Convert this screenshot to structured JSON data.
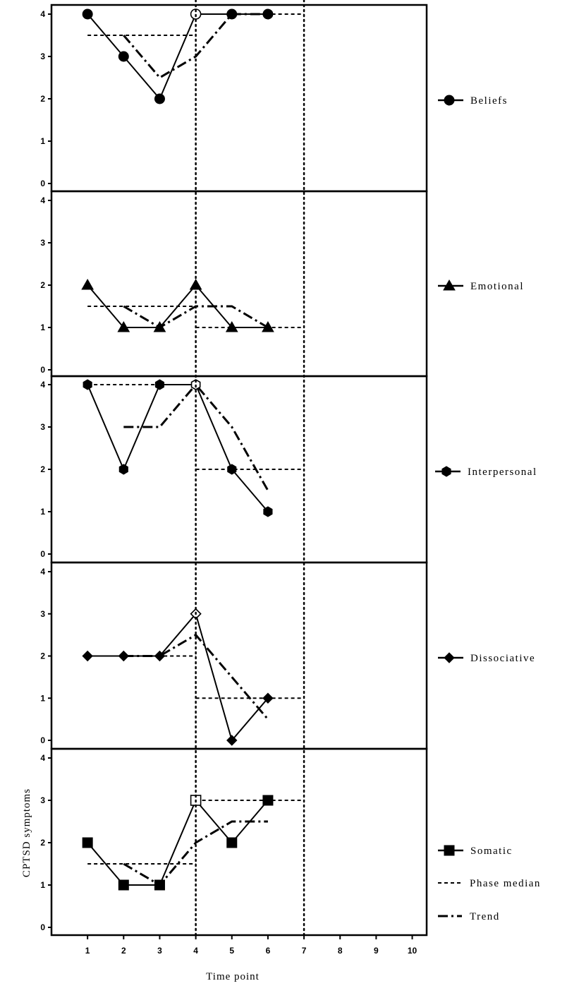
{
  "chart_data": {
    "type": "line",
    "ylabel": "CPTSD symptoms",
    "xlabel": "Time point",
    "x_ticks": [
      1,
      2,
      3,
      4,
      5,
      6,
      7,
      8,
      9,
      10
    ],
    "xlim": [
      0,
      10.4
    ],
    "ylim": [
      0,
      4
    ],
    "y_ticks": [
      0,
      1,
      2,
      3,
      4
    ],
    "phase_change_lines": [
      4,
      7
    ],
    "legend_extra": [
      {
        "name": "Phase median",
        "style": "dashed"
      },
      {
        "name": "Trend",
        "style": "dash-dot"
      }
    ],
    "panels": [
      {
        "name": "Beliefs",
        "marker": "circle",
        "x": [
          1,
          2,
          3,
          4,
          5,
          6
        ],
        "values": [
          4,
          3,
          2,
          4,
          4,
          4
        ],
        "open_points": [
          4
        ],
        "phase_medians": [
          {
            "x": [
              1,
              4
            ],
            "y": 3.5
          },
          {
            "x": [
              4,
              7
            ],
            "y": 4
          }
        ],
        "trend": {
          "x": [
            2,
            3,
            4,
            5,
            6
          ],
          "y": [
            3.5,
            2.5,
            3,
            4,
            4
          ]
        }
      },
      {
        "name": "Emotional",
        "marker": "triangle",
        "x": [
          1,
          2,
          3,
          4,
          5,
          6
        ],
        "values": [
          2,
          1,
          1,
          2,
          1,
          1
        ],
        "open_points": [],
        "phase_medians": [
          {
            "x": [
              1,
              4
            ],
            "y": 1.5
          },
          {
            "x": [
              4,
              7
            ],
            "y": 1
          }
        ],
        "trend": {
          "x": [
            2,
            3,
            4,
            5,
            6
          ],
          "y": [
            1.5,
            1,
            1.5,
            1.5,
            1
          ]
        }
      },
      {
        "name": "Interpersonal",
        "marker": "hexagon",
        "x": [
          1,
          2,
          3,
          4,
          5,
          6
        ],
        "values": [
          4,
          2,
          4,
          4,
          2,
          1
        ],
        "open_points": [
          4
        ],
        "phase_medians": [
          {
            "x": [
              1,
              4
            ],
            "y": 4
          },
          {
            "x": [
              4,
              7
            ],
            "y": 2
          }
        ],
        "trend": {
          "x": [
            2,
            3,
            4,
            5,
            6
          ],
          "y": [
            3,
            3,
            4,
            3,
            1.5
          ]
        }
      },
      {
        "name": "Dissociative",
        "marker": "diamond",
        "x": [
          1,
          2,
          3,
          4,
          5,
          6
        ],
        "values": [
          2,
          2,
          2,
          3,
          0,
          1
        ],
        "open_points": [
          4
        ],
        "phase_medians": [
          {
            "x": [
              1,
              4
            ],
            "y": 2
          },
          {
            "x": [
              4,
              7
            ],
            "y": 1
          }
        ],
        "trend": {
          "x": [
            2,
            3,
            4,
            5,
            6
          ],
          "y": [
            2,
            2,
            2.5,
            1.5,
            0.5
          ]
        }
      },
      {
        "name": "Somatic",
        "marker": "square",
        "x": [
          1,
          2,
          3,
          4,
          5,
          6
        ],
        "values": [
          2,
          1,
          1,
          3,
          2,
          3
        ],
        "open_points": [
          4
        ],
        "phase_medians": [
          {
            "x": [
              1,
              4
            ],
            "y": 1.5
          },
          {
            "x": [
              4,
              7
            ],
            "y": 3
          }
        ],
        "trend": {
          "x": [
            2,
            3,
            4,
            5,
            6
          ],
          "y": [
            1.5,
            1,
            2,
            2.5,
            2.5
          ]
        }
      }
    ]
  }
}
